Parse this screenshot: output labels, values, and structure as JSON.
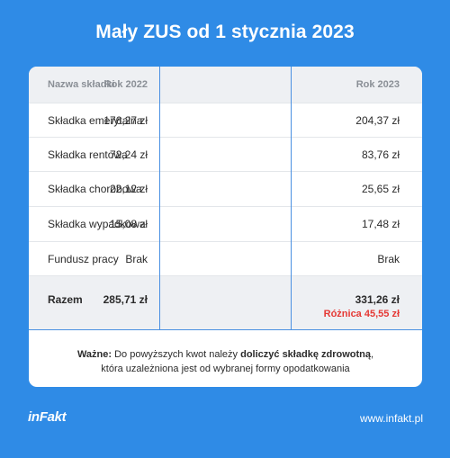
{
  "title": "Mały ZUS od 1 stycznia 2023",
  "table": {
    "headers": [
      "Nazwa składki",
      "Rok 2022",
      "Rok 2023"
    ],
    "rows": [
      {
        "name": "Składka emerytalna",
        "y2022": "176,27 zł",
        "y2023": "204,37 zł"
      },
      {
        "name": "Składka rentowa",
        "y2022": "72,24 zł",
        "y2023": "83,76 zł"
      },
      {
        "name": "Składka chorobowa",
        "y2022": "22,12 zł",
        "y2023": "25,65 zł"
      },
      {
        "name": "Składka wypadkowa",
        "y2022": "15,08 zł",
        "y2023": "17,48 zł"
      },
      {
        "name": "Fundusz pracy",
        "y2022": "Brak",
        "y2023": "Brak"
      }
    ],
    "total": {
      "name": "Razem",
      "y2022": "285,71 zł",
      "y2023": "331,26 zł",
      "difference": "Różnica 45,55 zł"
    }
  },
  "note": {
    "bold_lead": "Ważne:",
    "text1": " Do powyższych kwot należy ",
    "bold_mid": "doliczyć składkę zdrowotną",
    "text2": ",",
    "line2": "która uzależniona jest od wybranej formy opodatkowania"
  },
  "footer": {
    "logo": "inFakt",
    "url": "www.infakt.pl"
  },
  "colors": {
    "background": "#2f8be6",
    "accent_line": "#4a90e2",
    "difference": "#e53935"
  }
}
